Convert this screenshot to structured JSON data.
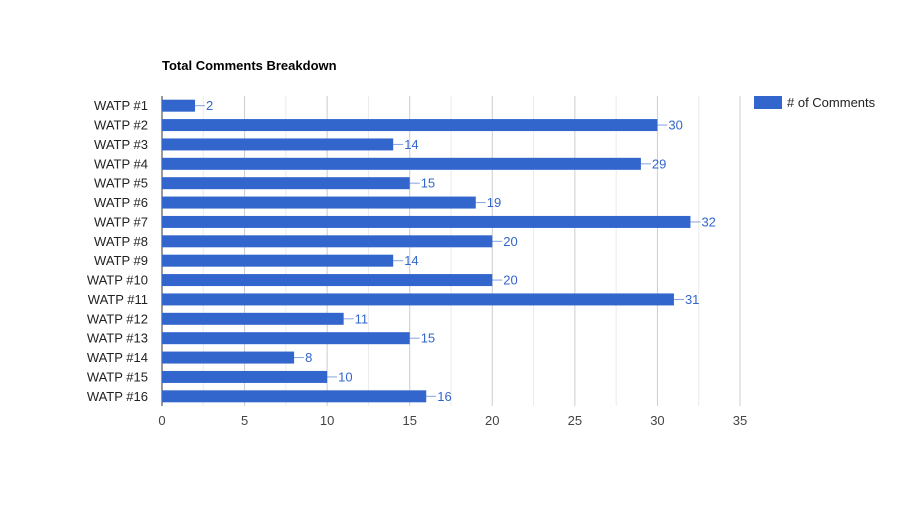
{
  "chart_data": {
    "type": "bar",
    "orientation": "horizontal",
    "title": "Total Comments Breakdown",
    "xlabel": "",
    "ylabel": "",
    "categories": [
      "WATP #1",
      "WATP #2",
      "WATP #3",
      "WATP #4",
      "WATP #5",
      "WATP #6",
      "WATP #7",
      "WATP #8",
      "WATP #9",
      "WATP #10",
      "WATP #11",
      "WATP #12",
      "WATP #13",
      "WATP #14",
      "WATP #15",
      "WATP #16"
    ],
    "series": [
      {
        "name": "# of Comments",
        "color": "#3366cc",
        "values": [
          2,
          30,
          14,
          29,
          15,
          19,
          32,
          20,
          14,
          20,
          31,
          11,
          15,
          8,
          10,
          16
        ]
      }
    ],
    "xlim": [
      0,
      35
    ],
    "xticks": [
      0,
      5,
      10,
      15,
      20,
      25,
      30,
      35
    ],
    "grid": true,
    "legend_position": "top-right",
    "data_labels": true
  },
  "colors": {
    "bar": "#3366cc",
    "grid_major": "#cccccc",
    "grid_minor": "#ebebeb",
    "axis": "#333333"
  }
}
